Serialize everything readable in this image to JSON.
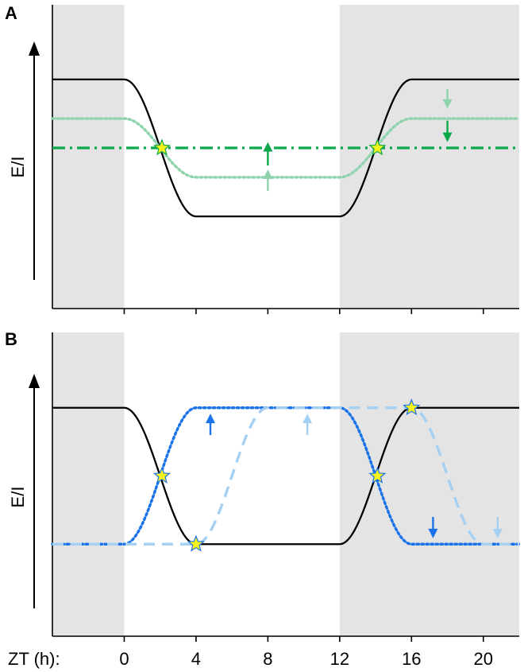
{
  "chart_data": [
    {
      "panel": "A",
      "type": "line",
      "ylabel": "E/I",
      "xlabel": "ZT (h):",
      "xlim": [
        -4,
        22
      ],
      "ylim": [
        0,
        1
      ],
      "shaded_regions": [
        [
          -4,
          0
        ],
        [
          12,
          22
        ]
      ],
      "series": [
        {
          "style": "solid",
          "color": "#000000",
          "x": [
            -4,
            0,
            4,
            12,
            16,
            22
          ],
          "y": [
            0.85,
            0.85,
            0.15,
            0.15,
            0.85,
            0.85
          ]
        },
        {
          "style": "dotted",
          "color": "#8fd3ad",
          "x": [
            -4,
            0,
            4,
            12,
            16,
            22
          ],
          "y": [
            0.65,
            0.65,
            0.35,
            0.35,
            0.65,
            0.65
          ]
        },
        {
          "style": "dash-dot",
          "color": "#0aa84a",
          "x": [
            -4,
            22
          ],
          "y": [
            0.5,
            0.5
          ]
        }
      ],
      "stars": [
        {
          "x": 2.1,
          "y": 0.5
        },
        {
          "x": 14.1,
          "y": 0.5
        }
      ],
      "arrows": [
        {
          "x": 8,
          "y_from": 0.41,
          "y_to": 0.53,
          "color": "#0aa84a"
        },
        {
          "x": 8,
          "y_from": 0.28,
          "y_to": 0.39,
          "color": "#8fd3ad"
        },
        {
          "x": 18,
          "y_from": 0.8,
          "y_to": 0.7,
          "color": "#8fd3ad"
        },
        {
          "x": 18,
          "y_from": 0.64,
          "y_to": 0.53,
          "color": "#0aa84a"
        }
      ]
    },
    {
      "panel": "B",
      "type": "line",
      "ylabel": "E/I",
      "xlabel": "ZT (h):",
      "xlim": [
        -4,
        22
      ],
      "ylim": [
        0,
        1
      ],
      "shaded_regions": [
        [
          -4,
          0
        ],
        [
          12,
          22
        ]
      ],
      "xticks": [
        0,
        4,
        8,
        12,
        16,
        20
      ],
      "series": [
        {
          "style": "solid",
          "color": "#000000",
          "x": [
            -4,
            0,
            4,
            12,
            16,
            22
          ],
          "y": [
            0.85,
            0.85,
            0.15,
            0.15,
            0.85,
            0.85
          ]
        },
        {
          "style": "dotted",
          "color": "#1a73e8",
          "x": [
            -4,
            0,
            4,
            12,
            16,
            22
          ],
          "y": [
            0.15,
            0.15,
            0.85,
            0.85,
            0.15,
            0.15
          ]
        },
        {
          "style": "dashed",
          "color": "#a6d0f2",
          "x": [
            -4,
            4,
            8,
            16,
            20,
            22
          ],
          "y": [
            0.15,
            0.15,
            0.85,
            0.85,
            0.15,
            0.15
          ]
        }
      ],
      "stars": [
        {
          "x": 2.1,
          "y": 0.5
        },
        {
          "x": 4,
          "y": 0.15
        },
        {
          "x": 14.1,
          "y": 0.5
        },
        {
          "x": 16,
          "y": 0.85
        }
      ],
      "arrows": [
        {
          "x": 4.8,
          "y_from": 0.71,
          "y_to": 0.82,
          "color": "#1a73e8"
        },
        {
          "x": 10.2,
          "y_from": 0.71,
          "y_to": 0.82,
          "color": "#a6d0f2"
        },
        {
          "x": 17.2,
          "y_from": 0.29,
          "y_to": 0.18,
          "color": "#1a73e8"
        },
        {
          "x": 20.8,
          "y_from": 0.29,
          "y_to": 0.18,
          "color": "#a6d0f2"
        }
      ]
    }
  ]
}
